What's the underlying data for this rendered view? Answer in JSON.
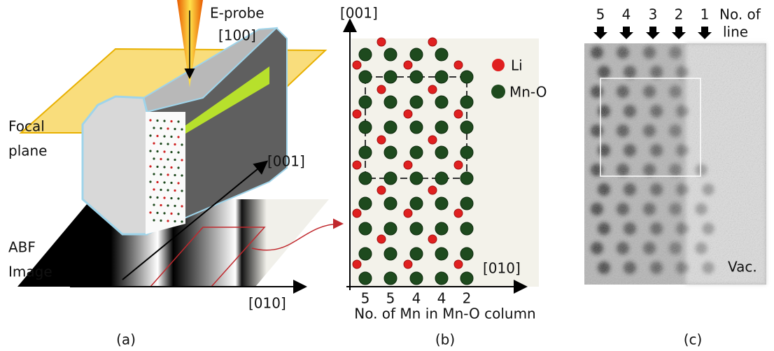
{
  "panel_a": {
    "probe_label": "E-probe",
    "probe_direction": "[100]",
    "focal_plane": [
      "Focal",
      "plane"
    ],
    "axis_001": "[001]",
    "axis_010": "[010]",
    "image_label": [
      "ABF",
      "Image"
    ],
    "caption": "(a)"
  },
  "panel_b": {
    "axis_001": "[001]",
    "axis_010": "[010]",
    "legend": [
      {
        "label": "Li"
      },
      {
        "label": "Mn-O"
      }
    ],
    "column_counts": [
      5,
      5,
      4,
      4,
      2
    ],
    "x_label": "No. of Mn in Mn-O column",
    "caption": "(b)"
  },
  "panel_c": {
    "line_numbers": [
      5,
      4,
      3,
      2,
      1
    ],
    "line_label": [
      "No. of",
      "line"
    ],
    "vacuum_label": "Vac.",
    "caption": "(c)"
  }
}
